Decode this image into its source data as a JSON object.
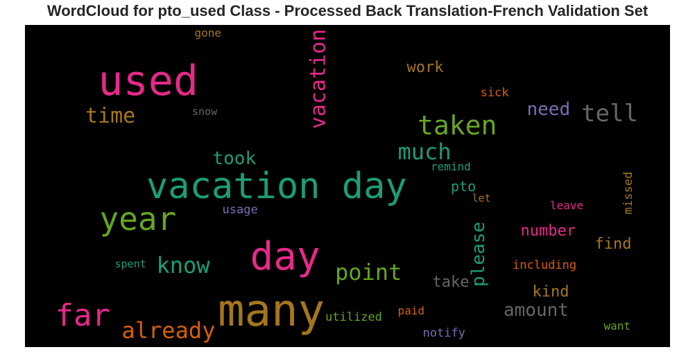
{
  "chart_data": {
    "type": "wordcloud",
    "title": "WordCloud for pto_used Class - Processed Back Translation-French Validation Set",
    "background": "#000000",
    "palette": [
      "#e7298a",
      "#1b9e77",
      "#66a61e",
      "#a6761d",
      "#d95f02",
      "#7570b3",
      "#666666"
    ],
    "words": [
      {
        "text": "many",
        "color": "#a6761d",
        "orientation": "horizontal"
      },
      {
        "text": "vacation day",
        "color": "#1b9e77",
        "orientation": "horizontal"
      },
      {
        "text": "used",
        "color": "#e7298a",
        "orientation": "horizontal"
      },
      {
        "text": "day",
        "color": "#e7298a",
        "orientation": "horizontal"
      },
      {
        "text": "year",
        "color": "#66a61e",
        "orientation": "horizontal"
      },
      {
        "text": "far",
        "color": "#e7298a",
        "orientation": "horizontal"
      },
      {
        "text": "taken",
        "color": "#66a61e",
        "orientation": "horizontal"
      },
      {
        "text": "vacation",
        "color": "#e7298a",
        "orientation": "vertical"
      },
      {
        "text": "already",
        "color": "#d95f02",
        "orientation": "horizontal"
      },
      {
        "text": "much",
        "color": "#1b9e77",
        "orientation": "horizontal"
      },
      {
        "text": "point",
        "color": "#66a61e",
        "orientation": "horizontal"
      },
      {
        "text": "know",
        "color": "#1b9e77",
        "orientation": "horizontal"
      },
      {
        "text": "tell",
        "color": "#666666",
        "orientation": "horizontal"
      },
      {
        "text": "time",
        "color": "#a6761d",
        "orientation": "horizontal"
      },
      {
        "text": "please",
        "color": "#1b9e77",
        "orientation": "vertical"
      },
      {
        "text": "amount",
        "color": "#666666",
        "orientation": "horizontal"
      },
      {
        "text": "took",
        "color": "#1b9e77",
        "orientation": "horizontal"
      },
      {
        "text": "need",
        "color": "#7570b3",
        "orientation": "horizontal"
      },
      {
        "text": "number",
        "color": "#e7298a",
        "orientation": "horizontal"
      },
      {
        "text": "kind",
        "color": "#a6761d",
        "orientation": "horizontal"
      },
      {
        "text": "take",
        "color": "#666666",
        "orientation": "horizontal"
      },
      {
        "text": "find",
        "color": "#a6761d",
        "orientation": "horizontal"
      },
      {
        "text": "work",
        "color": "#a6761d",
        "orientation": "horizontal"
      },
      {
        "text": "pto",
        "color": "#1b9e77",
        "orientation": "horizontal"
      },
      {
        "text": "utilized",
        "color": "#66a61e",
        "orientation": "horizontal"
      },
      {
        "text": "including",
        "color": "#d95f02",
        "orientation": "horizontal"
      },
      {
        "text": "missed",
        "color": "#a6761d",
        "orientation": "vertical"
      },
      {
        "text": "remind",
        "color": "#1b9e77",
        "orientation": "horizontal"
      },
      {
        "text": "notify",
        "color": "#7570b3",
        "orientation": "horizontal"
      },
      {
        "text": "sick",
        "color": "#d95f02",
        "orientation": "horizontal"
      },
      {
        "text": "leave",
        "color": "#e7298a",
        "orientation": "horizontal"
      },
      {
        "text": "want",
        "color": "#66a61e",
        "orientation": "horizontal"
      },
      {
        "text": "usage",
        "color": "#7570b3",
        "orientation": "horizontal"
      },
      {
        "text": "spent",
        "color": "#1b9e77",
        "orientation": "horizontal"
      },
      {
        "text": "paid",
        "color": "#d95f02",
        "orientation": "horizontal"
      },
      {
        "text": "let",
        "color": "#a6761d",
        "orientation": "horizontal"
      },
      {
        "text": "snow",
        "color": "#666666",
        "orientation": "horizontal"
      },
      {
        "text": "gone",
        "color": "#a6761d",
        "orientation": "horizontal"
      }
    ]
  }
}
